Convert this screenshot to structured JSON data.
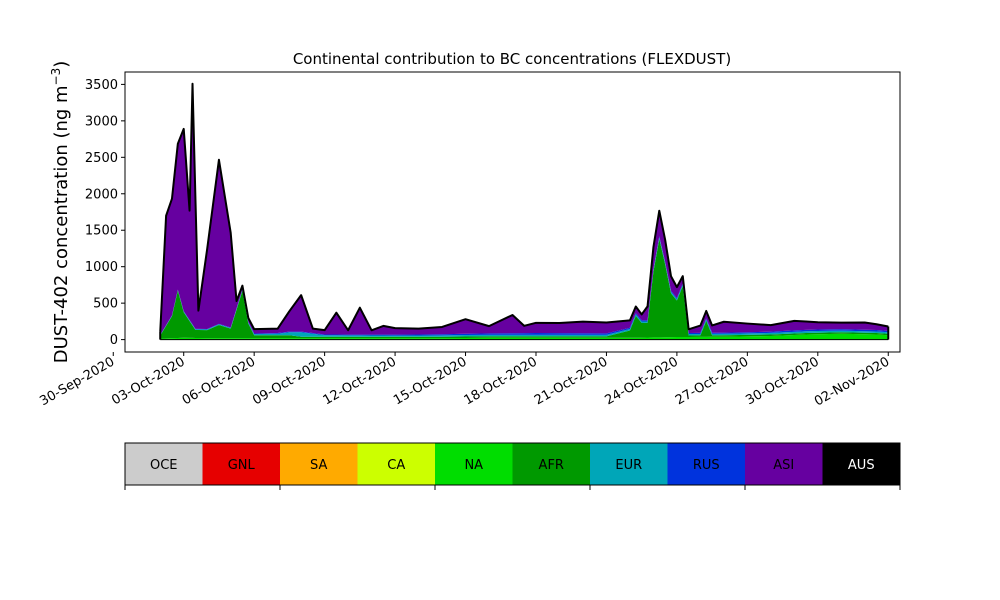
{
  "chart_data": {
    "type": "area",
    "title": "Continental contribution to BC concentrations (FLEXDUST)",
    "ylabel_main": "DUST-402 concentration (ng m",
    "ylabel_sup": "−3",
    "ylabel_close": ")",
    "xlabel": "",
    "xlim": [
      "2020-09-30T12:00",
      "2020-11-02T12:00"
    ],
    "ylim": [
      -170,
      3670
    ],
    "yticks": [
      0,
      500,
      1000,
      1500,
      2000,
      2500,
      3000,
      3500
    ],
    "ytick_labels": [
      "0",
      "500",
      "1000",
      "1500",
      "2000",
      "2500",
      "3000",
      "3500"
    ],
    "xticks": [
      "2020-09-30",
      "2020-10-03",
      "2020-10-06",
      "2020-10-09",
      "2020-10-12",
      "2020-10-15",
      "2020-10-18",
      "2020-10-21",
      "2020-10-24",
      "2020-10-27",
      "2020-10-30",
      "2020-11-02"
    ],
    "xtick_labels": [
      "30-Sep-2020",
      "03-Oct-2020",
      "06-Oct-2020",
      "09-Oct-2020",
      "12-Oct-2020",
      "15-Oct-2020",
      "18-Oct-2020",
      "21-Oct-2020",
      "24-Oct-2020",
      "27-Oct-2020",
      "30-Oct-2020",
      "02-Nov-2020"
    ],
    "stacked": true,
    "grid": false,
    "total_line_color": "#000000",
    "series": [
      {
        "name": "NA",
        "color": "#00dd00",
        "points": [
          [
            "2020-10-02T00:00",
            15
          ],
          [
            "2020-10-02T12:00",
            20
          ],
          [
            "2020-10-03T00:00",
            25
          ],
          [
            "2020-10-04T00:00",
            20
          ],
          [
            "2020-10-05T00:00",
            20
          ],
          [
            "2020-10-06T00:00",
            20
          ],
          [
            "2020-10-07T12:00",
            20
          ],
          [
            "2020-10-09T00:00",
            20
          ],
          [
            "2020-10-10T00:00",
            20
          ],
          [
            "2020-10-12T00:00",
            20
          ],
          [
            "2020-10-14T00:00",
            20
          ],
          [
            "2020-10-16T00:00",
            25
          ],
          [
            "2020-10-18T00:00",
            25
          ],
          [
            "2020-10-20T00:00",
            25
          ],
          [
            "2020-10-22T00:00",
            25
          ],
          [
            "2020-10-24T00:00",
            35
          ],
          [
            "2020-10-26T00:00",
            40
          ],
          [
            "2020-10-28T00:00",
            50
          ],
          [
            "2020-10-29T12:00",
            70
          ],
          [
            "2020-10-31T00:00",
            80
          ],
          [
            "2020-11-01T12:00",
            70
          ],
          [
            "2020-11-02T00:00",
            60
          ]
        ]
      },
      {
        "name": "AFR",
        "color": "#009900",
        "points": [
          [
            "2020-10-02T00:00",
            40
          ],
          [
            "2020-10-02T12:00",
            300
          ],
          [
            "2020-10-02T18:00",
            650
          ],
          [
            "2020-10-03T00:00",
            350
          ],
          [
            "2020-10-03T12:00",
            110
          ],
          [
            "2020-10-04T00:00",
            110
          ],
          [
            "2020-10-04T12:00",
            180
          ],
          [
            "2020-10-05T00:00",
            130
          ],
          [
            "2020-10-05T12:00",
            650
          ],
          [
            "2020-10-05T18:00",
            200
          ],
          [
            "2020-10-06T00:00",
            40
          ],
          [
            "2020-10-07T12:00",
            40
          ],
          [
            "2020-10-08T00:00",
            20
          ],
          [
            "2020-10-09T00:00",
            20
          ],
          [
            "2020-10-10T00:00",
            20
          ],
          [
            "2020-10-12T00:00",
            20
          ],
          [
            "2020-10-15T00:00",
            20
          ],
          [
            "2020-10-18T00:00",
            20
          ],
          [
            "2020-10-21T00:00",
            20
          ],
          [
            "2020-10-22T00:00",
            100
          ],
          [
            "2020-10-22T06:00",
            300
          ],
          [
            "2020-10-22T12:00",
            200
          ],
          [
            "2020-10-22T18:00",
            200
          ],
          [
            "2020-10-23T00:00",
            900
          ],
          [
            "2020-10-23T06:00",
            1350
          ],
          [
            "2020-10-23T12:00",
            1000
          ],
          [
            "2020-10-23T18:00",
            600
          ],
          [
            "2020-10-24T00:00",
            500
          ],
          [
            "2020-10-24T06:00",
            700
          ],
          [
            "2020-10-24T12:00",
            20
          ],
          [
            "2020-10-25T00:00",
            20
          ],
          [
            "2020-10-25T06:00",
            220
          ],
          [
            "2020-10-25T12:00",
            20
          ],
          [
            "2020-10-27T00:00",
            20
          ],
          [
            "2020-10-30T00:00",
            20
          ],
          [
            "2020-11-02T00:00",
            20
          ]
        ]
      },
      {
        "name": "EUR",
        "color": "#00a6b8",
        "points": [
          [
            "2020-10-02T00:00",
            5
          ],
          [
            "2020-10-03T00:00",
            10
          ],
          [
            "2020-10-05T00:00",
            10
          ],
          [
            "2020-10-07T00:00",
            20
          ],
          [
            "2020-10-08T00:00",
            60
          ],
          [
            "2020-10-09T00:00",
            20
          ],
          [
            "2020-10-12T00:00",
            15
          ],
          [
            "2020-10-15T00:00",
            20
          ],
          [
            "2020-10-18T00:00",
            20
          ],
          [
            "2020-10-21T00:00",
            20
          ],
          [
            "2020-10-24T00:00",
            20
          ],
          [
            "2020-10-27T00:00",
            20
          ],
          [
            "2020-10-30T00:00",
            25
          ],
          [
            "2020-11-02T00:00",
            20
          ]
        ]
      },
      {
        "name": "RUS",
        "color": "#0033dd",
        "points": [
          [
            "2020-10-02T00:00",
            5
          ],
          [
            "2020-10-04T00:00",
            5
          ],
          [
            "2020-10-07T00:00",
            10
          ],
          [
            "2020-10-10T00:00",
            10
          ],
          [
            "2020-10-14T00:00",
            15
          ],
          [
            "2020-10-18T00:00",
            25
          ],
          [
            "2020-10-21T00:00",
            20
          ],
          [
            "2020-10-24T00:00",
            15
          ],
          [
            "2020-10-27T00:00",
            15
          ],
          [
            "2020-10-29T00:00",
            20
          ],
          [
            "2020-10-31T00:00",
            20
          ],
          [
            "2020-11-02T00:00",
            20
          ]
        ]
      },
      {
        "name": "ASI",
        "color": "#6600a0",
        "points": [
          [
            "2020-10-02T00:00",
            40
          ],
          [
            "2020-10-02T06:00",
            1500
          ],
          [
            "2020-10-02T12:00",
            1600
          ],
          [
            "2020-10-02T18:00",
            2000
          ],
          [
            "2020-10-03T00:00",
            2500
          ],
          [
            "2020-10-03T06:00",
            1500
          ],
          [
            "2020-10-03T09:00",
            3300
          ],
          [
            "2020-10-03T15:00",
            250
          ],
          [
            "2020-10-04T00:00",
            1100
          ],
          [
            "2020-10-04T12:00",
            2250
          ],
          [
            "2020-10-05T00:00",
            1300
          ],
          [
            "2020-10-05T06:00",
            100
          ],
          [
            "2020-10-05T12:00",
            50
          ],
          [
            "2020-10-06T00:00",
            60
          ],
          [
            "2020-10-07T00:00",
            60
          ],
          [
            "2020-10-08T00:00",
            500
          ],
          [
            "2020-10-08T12:00",
            60
          ],
          [
            "2020-10-09T00:00",
            60
          ],
          [
            "2020-10-09T12:00",
            300
          ],
          [
            "2020-10-10T00:00",
            60
          ],
          [
            "2020-10-10T12:00",
            370
          ],
          [
            "2020-10-11T00:00",
            60
          ],
          [
            "2020-10-11T12:00",
            120
          ],
          [
            "2020-10-12T00:00",
            90
          ],
          [
            "2020-10-13T00:00",
            80
          ],
          [
            "2020-10-14T00:00",
            100
          ],
          [
            "2020-10-15T00:00",
            200
          ],
          [
            "2020-10-16T00:00",
            100
          ],
          [
            "2020-10-17T00:00",
            250
          ],
          [
            "2020-10-17T12:00",
            100
          ],
          [
            "2020-10-18T00:00",
            140
          ],
          [
            "2020-10-19T00:00",
            140
          ],
          [
            "2020-10-20T00:00",
            160
          ],
          [
            "2020-10-21T00:00",
            150
          ],
          [
            "2020-10-22T00:00",
            100
          ],
          [
            "2020-10-22T12:00",
            80
          ],
          [
            "2020-10-23T00:00",
            300
          ],
          [
            "2020-10-23T06:00",
            350
          ],
          [
            "2020-10-23T12:00",
            300
          ],
          [
            "2020-10-23T18:00",
            200
          ],
          [
            "2020-10-24T00:00",
            150
          ],
          [
            "2020-10-24T06:00",
            100
          ],
          [
            "2020-10-24T12:00",
            50
          ],
          [
            "2020-10-25T00:00",
            100
          ],
          [
            "2020-10-25T06:00",
            100
          ],
          [
            "2020-10-25T12:00",
            100
          ],
          [
            "2020-10-26T00:00",
            150
          ],
          [
            "2020-10-27T00:00",
            120
          ],
          [
            "2020-10-28T00:00",
            90
          ],
          [
            "2020-10-29T00:00",
            130
          ],
          [
            "2020-10-30T00:00",
            100
          ],
          [
            "2020-10-31T00:00",
            90
          ],
          [
            "2020-11-01T00:00",
            100
          ],
          [
            "2020-11-02T00:00",
            60
          ]
        ]
      },
      {
        "name": "OCE",
        "color": "#cccccc",
        "points": [
          [
            "2020-10-02T00:00",
            0
          ],
          [
            "2020-11-02T00:00",
            0
          ]
        ]
      },
      {
        "name": "GNL",
        "color": "#e60000",
        "points": [
          [
            "2020-10-02T00:00",
            0
          ],
          [
            "2020-11-02T00:00",
            0
          ]
        ]
      },
      {
        "name": "SA",
        "color": "#ffaa00",
        "points": [
          [
            "2020-10-02T00:00",
            0
          ],
          [
            "2020-11-02T00:00",
            0
          ]
        ]
      },
      {
        "name": "CA",
        "color": "#ccff00",
        "points": [
          [
            "2020-10-02T00:00",
            0
          ],
          [
            "2020-11-02T00:00",
            0
          ]
        ]
      },
      {
        "name": "AUS",
        "color": "#000000",
        "points": [
          [
            "2020-10-02T00:00",
            0
          ],
          [
            "2020-11-02T00:00",
            0
          ]
        ]
      }
    ],
    "legend": {
      "placement": "bottom colorbar",
      "entries": [
        {
          "label": "OCE",
          "color": "#cccccc",
          "text_color": "#000000"
        },
        {
          "label": "GNL",
          "color": "#e60000",
          "text_color": "#000000"
        },
        {
          "label": "SA",
          "color": "#ffaa00",
          "text_color": "#000000"
        },
        {
          "label": "CA",
          "color": "#ccff00",
          "text_color": "#000000"
        },
        {
          "label": "NA",
          "color": "#00dd00",
          "text_color": "#000000"
        },
        {
          "label": "AFR",
          "color": "#009900",
          "text_color": "#000000"
        },
        {
          "label": "EUR",
          "color": "#00a6b8",
          "text_color": "#000000"
        },
        {
          "label": "RUS",
          "color": "#0033dd",
          "text_color": "#000000"
        },
        {
          "label": "ASI",
          "color": "#6600a0",
          "text_color": "#000000"
        },
        {
          "label": "AUS",
          "color": "#000000",
          "text_color": "#ffffff"
        }
      ]
    }
  }
}
